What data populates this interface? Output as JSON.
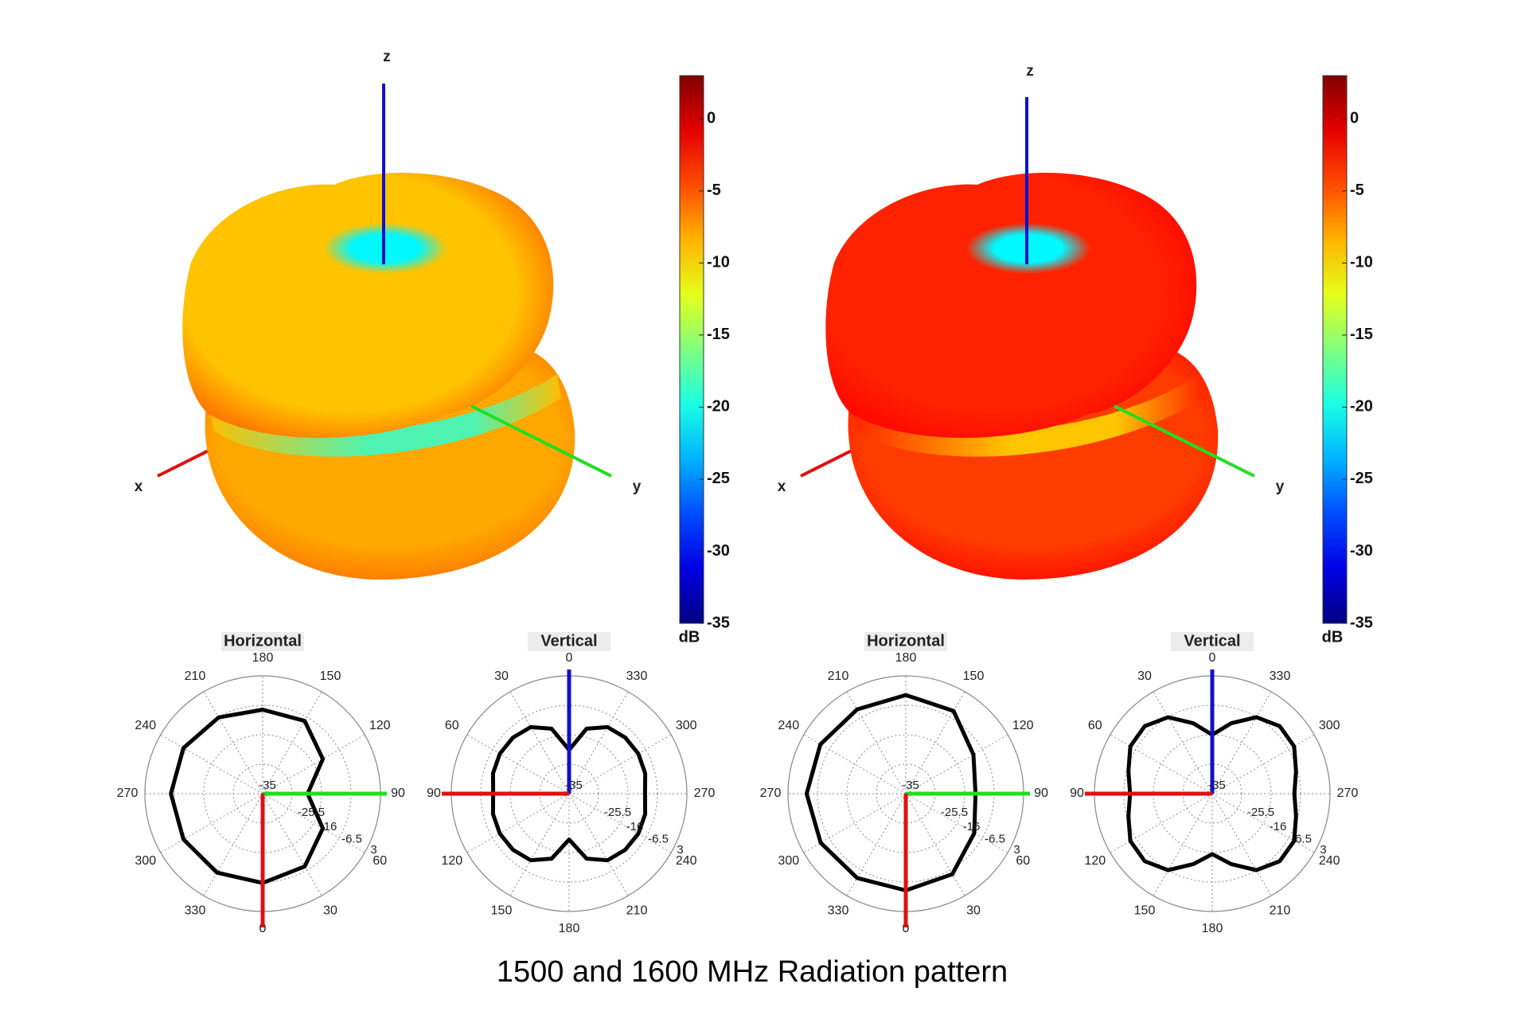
{
  "caption": "1500 and 1600 MHz Radiation pattern",
  "colors": {
    "x_axis": "#e01010",
    "y_axis": "#22dd22",
    "z_axis": "#1010cc",
    "pattern_line": "#000000",
    "grid": "#888888"
  },
  "chart_data": [
    {
      "type": "heatmap",
      "name": "3D radiation pattern (1500 MHz)",
      "axes": [
        "x",
        "y",
        "z"
      ],
      "colorbar": {
        "unit": "dB",
        "ticks": [
          "0",
          "-5",
          "-10",
          "-15",
          "-20",
          "-25",
          "-30",
          "-35"
        ],
        "range": [
          -35,
          3
        ]
      },
      "surface_level_db": {
        "upper_lobe": -9,
        "lower_lobe": -8,
        "rim": -6,
        "null_top": -21,
        "waist": -19
      }
    },
    {
      "type": "heatmap",
      "name": "3D radiation pattern (1600 MHz)",
      "axes": [
        "x",
        "y",
        "z"
      ],
      "colorbar": {
        "unit": "dB",
        "ticks": [
          "0",
          "-5",
          "-10",
          "-15",
          "-20",
          "-25",
          "-30",
          "-35"
        ],
        "range": [
          -35,
          3
        ]
      },
      "surface_level_db": {
        "upper_lobe": -3,
        "lower_lobe": -4,
        "rim": -2,
        "null_top": -21,
        "waist": -10
      }
    },
    {
      "type": "line",
      "title": "Horizontal",
      "angle_labels": [
        "180",
        "150",
        "120",
        "90",
        "60",
        "30",
        "0",
        "330",
        "300",
        "270",
        "240",
        "210"
      ],
      "radial_labels": [
        "-35",
        "-25.5",
        "-16",
        "-6.5",
        "3"
      ],
      "rlim": [
        -35,
        3
      ],
      "series": [
        {
          "name": "1500 MHz",
          "theta_deg": [
            0,
            30,
            60,
            90,
            120,
            150,
            180,
            210,
            240,
            270,
            300,
            330,
            360
          ],
          "r_db": [
            -7.9,
            -7.9,
            -12.6,
            -20.5,
            -12.6,
            -7.9,
            -6.2,
            -5.6,
            -5.5,
            -5.4,
            -5.5,
            -6.6,
            -7.9
          ]
        }
      ]
    },
    {
      "type": "line",
      "title": "Vertical",
      "angle_labels": [
        "0",
        "330",
        "300",
        "270",
        "240",
        "210",
        "180",
        "150",
        "120",
        "90",
        "60",
        "30"
      ],
      "radial_labels": [
        "-35",
        "-25.5",
        "-16",
        "-6.5",
        "3"
      ],
      "rlim": [
        -35,
        3
      ],
      "series": [
        {
          "name": "1500 MHz",
          "theta_deg": [
            0,
            15,
            30,
            45,
            60,
            75,
            90,
            105,
            120,
            135,
            150,
            165,
            180,
            195,
            210,
            225,
            240,
            255,
            270,
            285,
            300,
            315,
            330,
            345,
            360
          ],
          "r_db": [
            -20.9,
            -13.3,
            -10.2,
            -9.4,
            -9.2,
            -9.6,
            -10.5,
            -9.6,
            -9.2,
            -9.4,
            -10.2,
            -13.3,
            -20.2,
            -13.3,
            -10.2,
            -9.4,
            -9.2,
            -9.6,
            -10.5,
            -9.6,
            -9.2,
            -9.4,
            -10.2,
            -13.3,
            -20.9
          ]
        }
      ]
    },
    {
      "type": "line",
      "title": "Horizontal",
      "angle_labels": [
        "180",
        "150",
        "120",
        "90",
        "60",
        "30",
        "0",
        "330",
        "300",
        "270",
        "240",
        "210"
      ],
      "radial_labels": [
        "-35",
        "-25.5",
        "-16",
        "-6.5",
        "3"
      ],
      "rlim": [
        -35,
        3
      ],
      "series": [
        {
          "name": "1600 MHz",
          "theta_deg": [
            0,
            30,
            60,
            90,
            120,
            150,
            180,
            210,
            240,
            270,
            300,
            330,
            360
          ],
          "r_db": [
            -3.2,
            -4.2,
            -9.8,
            -12.5,
            -9.5,
            -5.0,
            -3.8,
            -3.6,
            -3.3,
            -3.0,
            -3.2,
            -3.6,
            -3.2
          ]
        }
      ]
    },
    {
      "type": "line",
      "title": "Vertical",
      "angle_labels": [
        "0",
        "330",
        "300",
        "270",
        "240",
        "210",
        "180",
        "150",
        "120",
        "90",
        "60",
        "30"
      ],
      "radial_labels": [
        "-35",
        "-25.5",
        "-16",
        "-6.5",
        "3"
      ],
      "rlim": [
        -35,
        3
      ],
      "series": [
        {
          "name": "1600 MHz",
          "theta_deg": [
            0,
            15,
            30,
            45,
            60,
            75,
            90,
            105,
            120,
            135,
            150,
            165,
            180,
            195,
            210,
            225,
            240,
            255,
            270,
            285,
            300,
            315,
            330,
            345,
            360
          ],
          "r_db": [
            -16.0,
            -11.5,
            -6.5,
            -4.2,
            -4.5,
            -7.0,
            -8.5,
            -7.0,
            -4.5,
            -4.2,
            -6.5,
            -11.5,
            -15.5,
            -11.5,
            -6.5,
            -4.2,
            -4.5,
            -7.0,
            -8.5,
            -7.0,
            -4.5,
            -4.2,
            -6.5,
            -11.5,
            -16.0
          ]
        }
      ]
    }
  ]
}
